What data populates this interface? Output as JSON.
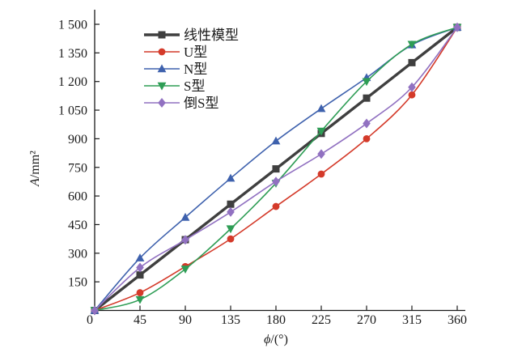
{
  "figure": {
    "background": "#ffffff",
    "axis_color": "#1a1a1a"
  },
  "chart_data": {
    "type": "line",
    "title": "",
    "xlabel": "ϕ/(°)",
    "ylabel": "A/mm²",
    "xlim": [
      0,
      360
    ],
    "ylim": [
      0,
      1500
    ],
    "x_ticks": [
      0,
      45,
      90,
      135,
      180,
      225,
      270,
      315,
      360
    ],
    "x_tick_labels": [
      "0",
      "45",
      "90",
      "135",
      "180",
      "225",
      "270",
      "315",
      "360"
    ],
    "y_ticks": [
      150,
      300,
      450,
      600,
      750,
      900,
      1050,
      1200,
      1350,
      1500
    ],
    "y_tick_labels": [
      "150",
      "300",
      "450",
      "600",
      "750",
      "900",
      "1 050",
      "1 200",
      "1 350",
      "1 500"
    ],
    "grid": false,
    "legend_position": "top-left-inside",
    "x": [
      0,
      45,
      90,
      135,
      180,
      225,
      270,
      315,
      360
    ],
    "series": [
      {
        "name": "线性模型",
        "color": "#3f3f3f",
        "marker": "square",
        "line_width": 3.4,
        "values": [
          0,
          186,
          371,
          557,
          742,
          928,
          1113,
          1299,
          1484
        ]
      },
      {
        "name": "U型",
        "color": "#d43a2a",
        "marker": "circle",
        "line_width": 1.6,
        "values": [
          0,
          93,
          230,
          375,
          545,
          715,
          900,
          1130,
          1484
        ]
      },
      {
        "name": "N型",
        "color": "#3e61ad",
        "marker": "triangle-up",
        "line_width": 1.6,
        "values": [
          0,
          275,
          488,
          693,
          888,
          1058,
          1220,
          1392,
          1484
        ]
      },
      {
        "name": "S型",
        "color": "#2e9d55",
        "marker": "triangle-down",
        "line_width": 1.6,
        "values": [
          0,
          57,
          217,
          428,
          667,
          940,
          1200,
          1395,
          1484
        ]
      },
      {
        "name": "倒S型",
        "color": "#9171c1",
        "marker": "diamond",
        "line_width": 1.6,
        "values": [
          0,
          225,
          370,
          516,
          676,
          820,
          980,
          1170,
          1484
        ]
      }
    ]
  }
}
